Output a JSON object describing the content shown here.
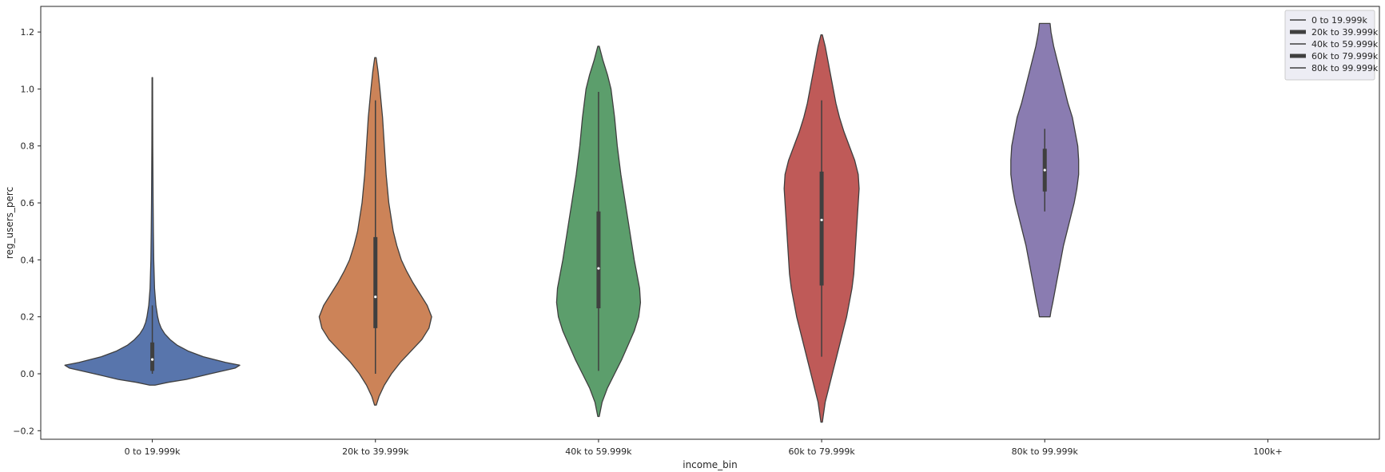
{
  "chart_data": {
    "type": "violin",
    "xlabel": "income_bin",
    "ylabel": "reg_users_perc",
    "ylim": [
      -0.23,
      1.29
    ],
    "yticks": [
      -0.2,
      0.0,
      0.2,
      0.4,
      0.6,
      0.8,
      1.0,
      1.2
    ],
    "ytick_labels": [
      "−0.2",
      "0.0",
      "0.2",
      "0.4",
      "0.6",
      "0.8",
      "1.0",
      "1.2"
    ],
    "categories": [
      "0 to 19.999k",
      "20k to 39.999k",
      "40k to 59.999k",
      "60k to 79.999k",
      "80k to 99.999k",
      "100k+"
    ],
    "grid": false,
    "legend_position": "top-right",
    "legend": [
      {
        "label": "0 to 19.999k"
      },
      {
        "label": "20k to 39.999k"
      },
      {
        "label": "40k to 59.999k"
      },
      {
        "label": "60k to 79.999k"
      },
      {
        "label": "80k to 99.999k"
      }
    ],
    "violins": [
      {
        "category": "0 to 19.999k",
        "color": "#5875ac",
        "y_min": -0.04,
        "y_max": 1.04,
        "whisker_low": 0.0,
        "whisker_high": 0.24,
        "q1": 0.01,
        "q3": 0.11,
        "median": 0.05,
        "density": [
          [
            -0.04,
            0.03
          ],
          [
            -0.03,
            0.18
          ],
          [
            -0.02,
            0.38
          ],
          [
            0.0,
            0.65
          ],
          [
            0.02,
            0.93
          ],
          [
            0.03,
            0.98
          ],
          [
            0.04,
            0.82
          ],
          [
            0.06,
            0.57
          ],
          [
            0.08,
            0.4
          ],
          [
            0.1,
            0.28
          ],
          [
            0.12,
            0.2
          ],
          [
            0.14,
            0.14
          ],
          [
            0.16,
            0.1
          ],
          [
            0.18,
            0.075
          ],
          [
            0.2,
            0.06
          ],
          [
            0.24,
            0.04
          ],
          [
            0.3,
            0.025
          ],
          [
            0.4,
            0.016
          ],
          [
            0.5,
            0.012
          ],
          [
            0.6,
            0.009
          ],
          [
            0.7,
            0.007
          ],
          [
            0.8,
            0.005
          ],
          [
            0.9,
            0.004
          ],
          [
            1.04,
            0.003
          ]
        ]
      },
      {
        "category": "20k to 39.999k",
        "color": "#cc8358",
        "y_min": -0.11,
        "y_max": 1.11,
        "whisker_low": 0.0,
        "whisker_high": 0.96,
        "q1": 0.16,
        "q3": 0.48,
        "median": 0.27,
        "density": [
          [
            -0.11,
            0.01
          ],
          [
            -0.08,
            0.04
          ],
          [
            -0.04,
            0.1
          ],
          [
            0.0,
            0.18
          ],
          [
            0.04,
            0.28
          ],
          [
            0.08,
            0.4
          ],
          [
            0.12,
            0.52
          ],
          [
            0.16,
            0.6
          ],
          [
            0.2,
            0.63
          ],
          [
            0.24,
            0.58
          ],
          [
            0.28,
            0.5
          ],
          [
            0.32,
            0.42
          ],
          [
            0.36,
            0.35
          ],
          [
            0.4,
            0.29
          ],
          [
            0.45,
            0.24
          ],
          [
            0.5,
            0.2
          ],
          [
            0.6,
            0.15
          ],
          [
            0.7,
            0.12
          ],
          [
            0.8,
            0.1
          ],
          [
            0.9,
            0.08
          ],
          [
            1.0,
            0.05
          ],
          [
            1.06,
            0.03
          ],
          [
            1.11,
            0.008
          ]
        ]
      },
      {
        "category": "40k to 59.999k",
        "color": "#5c9e6c",
        "y_min": -0.15,
        "y_max": 1.15,
        "whisker_low": 0.01,
        "whisker_high": 0.99,
        "q1": 0.23,
        "q3": 0.57,
        "median": 0.37,
        "density": [
          [
            -0.15,
            0.008
          ],
          [
            -0.1,
            0.04
          ],
          [
            -0.05,
            0.1
          ],
          [
            0.0,
            0.18
          ],
          [
            0.05,
            0.26
          ],
          [
            0.1,
            0.33
          ],
          [
            0.15,
            0.4
          ],
          [
            0.2,
            0.45
          ],
          [
            0.25,
            0.47
          ],
          [
            0.3,
            0.46
          ],
          [
            0.35,
            0.43
          ],
          [
            0.4,
            0.4
          ],
          [
            0.5,
            0.35
          ],
          [
            0.6,
            0.3
          ],
          [
            0.7,
            0.25
          ],
          [
            0.8,
            0.21
          ],
          [
            0.9,
            0.18
          ],
          [
            1.0,
            0.14
          ],
          [
            1.05,
            0.1
          ],
          [
            1.1,
            0.05
          ],
          [
            1.15,
            0.008
          ]
        ]
      },
      {
        "category": "60k to 79.999k",
        "color": "#bf5a58",
        "y_min": -0.17,
        "y_max": 1.19,
        "whisker_low": 0.06,
        "whisker_high": 0.96,
        "q1": 0.31,
        "q3": 0.71,
        "median": 0.54,
        "density": [
          [
            -0.17,
            0.008
          ],
          [
            -0.1,
            0.04
          ],
          [
            -0.05,
            0.08
          ],
          [
            0.0,
            0.12
          ],
          [
            0.05,
            0.16
          ],
          [
            0.1,
            0.2
          ],
          [
            0.15,
            0.24
          ],
          [
            0.2,
            0.28
          ],
          [
            0.25,
            0.31
          ],
          [
            0.3,
            0.34
          ],
          [
            0.35,
            0.36
          ],
          [
            0.4,
            0.37
          ],
          [
            0.45,
            0.38
          ],
          [
            0.5,
            0.39
          ],
          [
            0.55,
            0.4
          ],
          [
            0.6,
            0.41
          ],
          [
            0.65,
            0.42
          ],
          [
            0.7,
            0.41
          ],
          [
            0.75,
            0.37
          ],
          [
            0.8,
            0.31
          ],
          [
            0.85,
            0.25
          ],
          [
            0.9,
            0.2
          ],
          [
            0.95,
            0.16
          ],
          [
            1.0,
            0.13
          ],
          [
            1.05,
            0.1
          ],
          [
            1.1,
            0.07
          ],
          [
            1.15,
            0.04
          ],
          [
            1.19,
            0.008
          ]
        ]
      },
      {
        "category": "80k to 99.999k",
        "color": "#8a7cb1",
        "y_min": 0.2,
        "y_max": 1.23,
        "whisker_low": 0.57,
        "whisker_high": 0.86,
        "q1": 0.64,
        "q3": 0.79,
        "median": 0.715,
        "density": [
          [
            0.2,
            0.06
          ],
          [
            0.22,
            0.07
          ],
          [
            0.25,
            0.09
          ],
          [
            0.3,
            0.12
          ],
          [
            0.35,
            0.15
          ],
          [
            0.4,
            0.18
          ],
          [
            0.45,
            0.21
          ],
          [
            0.5,
            0.25
          ],
          [
            0.55,
            0.29
          ],
          [
            0.6,
            0.33
          ],
          [
            0.65,
            0.36
          ],
          [
            0.7,
            0.38
          ],
          [
            0.75,
            0.38
          ],
          [
            0.8,
            0.37
          ],
          [
            0.85,
            0.34
          ],
          [
            0.9,
            0.31
          ],
          [
            0.95,
            0.26
          ],
          [
            1.0,
            0.22
          ],
          [
            1.05,
            0.18
          ],
          [
            1.1,
            0.14
          ],
          [
            1.15,
            0.1
          ],
          [
            1.2,
            0.07
          ],
          [
            1.23,
            0.06
          ]
        ]
      }
    ]
  }
}
